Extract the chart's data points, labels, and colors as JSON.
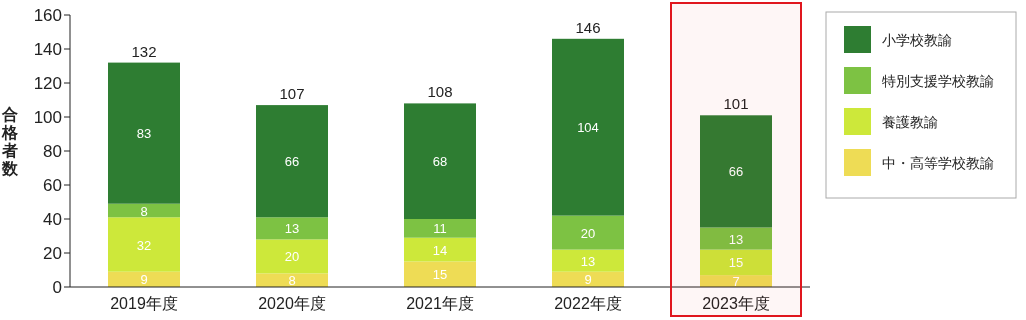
{
  "chart_data": {
    "type": "bar",
    "stacked": true,
    "ylabel": "合格者数",
    "categories": [
      "2019年度",
      "2020年度",
      "2021年度",
      "2022年度",
      "2023年度"
    ],
    "series": [
      {
        "name": "中・高等学校教諭",
        "color": "#eedc55",
        "values": [
          9,
          8,
          15,
          9,
          7
        ]
      },
      {
        "name": "養護教諭",
        "color": "#cde83a",
        "values": [
          32,
          20,
          14,
          13,
          15
        ]
      },
      {
        "name": "特別支援学校教諭",
        "color": "#7dc243",
        "values": [
          8,
          13,
          11,
          20,
          13
        ]
      },
      {
        "name": "小学校教諭",
        "color": "#2e7d32",
        "values": [
          83,
          66,
          68,
          104,
          66
        ]
      }
    ],
    "totals": [
      "132",
      "107",
      "108",
      "146",
      "101"
    ],
    "data_labels": true,
    "ylim": [
      0,
      160
    ],
    "yticks": [
      0,
      20,
      40,
      60,
      80,
      100,
      120,
      140,
      160
    ],
    "grid": false,
    "legend": "right",
    "bands": [
      {
        "axis": "x",
        "from": "2023年度",
        "to": "2023年度",
        "color": "#e0161e"
      }
    ]
  }
}
